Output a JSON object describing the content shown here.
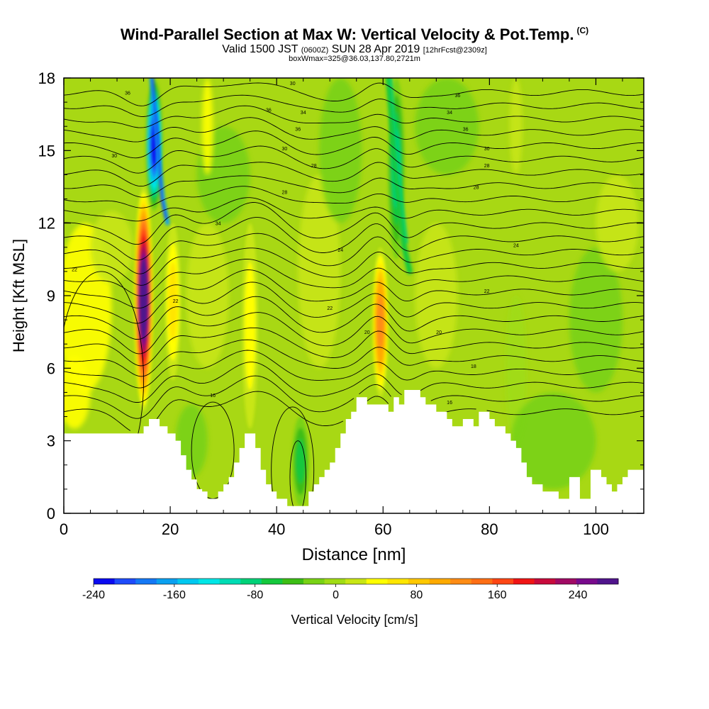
{
  "title": {
    "main": "Wind-Parallel Section at Max W: Vertical Velocity & Pot.Temp.",
    "main_sup": "(C)",
    "valid_a": "Valid 1500 JST",
    "valid_b": "(0600Z)",
    "valid_c": "SUN 28 Apr 2019",
    "valid_d": "[12hrFcst@2309z]",
    "box": "boxWmax=325@36.03,137.80,2721m"
  },
  "chart_data": {
    "type": "heatmap",
    "xlabel": "Distance [nm]",
    "ylabel": "Height [Kft MSL]",
    "xlim": [
      0,
      109
    ],
    "ylim": [
      0,
      18
    ],
    "xticks": [
      0,
      20,
      40,
      60,
      80,
      100
    ],
    "yticks": [
      0,
      3,
      6,
      9,
      12,
      15,
      18
    ],
    "colorbar": {
      "label": "Vertical Velocity [cm/s]",
      "range": [
        -240,
        280
      ],
      "tick_values": [
        -240,
        -160,
        -80,
        0,
        80,
        160,
        240
      ],
      "colors": [
        "#0a0af0",
        "#1e4bfa",
        "#1478f5",
        "#0aa0f0",
        "#00c8f0",
        "#00e6e6",
        "#00dcb4",
        "#00d278",
        "#14c83c",
        "#3cbe14",
        "#78d214",
        "#a0dc14",
        "#c8e614",
        "#ffff00",
        "#ffe600",
        "#ffc800",
        "#ffaa00",
        "#ff8c14",
        "#ff6e14",
        "#ff4614",
        "#f01414",
        "#c80a3c",
        "#a00a64",
        "#780a8c",
        "#50148c"
      ]
    },
    "velocity_features": [
      {
        "kind": "updraft",
        "x_center_nm": 15,
        "z_bottom_kft": 4.2,
        "z_top_kft": 13.5,
        "max_cm_s": 280
      },
      {
        "kind": "updraft",
        "x_center_nm": 20.5,
        "z_bottom_kft": 5.5,
        "z_top_kft": 12,
        "max_cm_s": 60
      },
      {
        "kind": "updraft",
        "x_center_nm": 35,
        "z_bottom_kft": 3.5,
        "z_top_kft": 12,
        "max_cm_s": 40
      },
      {
        "kind": "updraft",
        "x_center_nm": 59.5,
        "z_bottom_kft": 4.8,
        "z_top_kft": 11,
        "max_cm_s": 130
      },
      {
        "kind": "downdraft",
        "x_center_nm": 17,
        "z_bottom_kft": 12.5,
        "z_top_kft": 18,
        "min_cm_s": -220
      },
      {
        "kind": "downdraft",
        "x_center_nm": 62.5,
        "z_bottom_kft": 10.5,
        "z_top_kft": 18,
        "min_cm_s": -80
      },
      {
        "kind": "downdraft",
        "x_center_nm": 44.5,
        "z_bottom_kft": 0.3,
        "z_top_kft": 4,
        "min_cm_s": -60
      }
    ],
    "terrain": {
      "x": [
        0,
        14,
        15,
        16,
        17,
        18,
        19.5,
        21,
        22,
        23,
        24,
        25,
        26,
        27,
        28,
        29,
        30,
        31,
        32,
        33,
        34,
        35,
        36,
        37,
        38,
        39,
        40,
        41,
        42,
        43,
        44,
        45,
        46,
        47,
        48,
        49,
        50,
        51,
        52,
        53,
        54,
        55,
        56,
        57,
        58,
        59,
        60,
        61,
        62,
        63,
        64,
        65,
        66,
        67,
        68,
        69,
        70,
        71,
        72,
        73,
        74,
        75,
        76,
        77,
        78,
        79,
        80,
        81,
        82,
        83,
        84,
        85,
        86,
        87,
        88,
        89,
        90,
        91,
        92,
        93,
        94,
        95,
        96,
        97,
        98,
        99,
        100,
        101,
        102,
        103,
        104,
        105,
        106,
        107,
        108,
        109
      ],
      "z": [
        3.3,
        3.3,
        3.6,
        3.9,
        3.9,
        3.6,
        3.3,
        3.0,
        2.4,
        1.8,
        1.4,
        1.0,
        0.9,
        0.6,
        0.6,
        0.9,
        1.2,
        1.5,
        2.1,
        2.7,
        3.3,
        3.3,
        2.7,
        1.8,
        1.2,
        0.9,
        0.6,
        0.6,
        0.3,
        0.3,
        0.3,
        0.3,
        0.9,
        1.2,
        1.5,
        1.8,
        2.1,
        2.7,
        3.3,
        3.9,
        4.2,
        4.8,
        4.8,
        4.5,
        4.5,
        4.5,
        4.5,
        4.2,
        4.8,
        4.5,
        5.1,
        5.1,
        5.1,
        4.8,
        4.5,
        4.5,
        4.2,
        4.2,
        3.9,
        3.6,
        3.6,
        3.9,
        3.9,
        3.6,
        4.2,
        4.2,
        3.9,
        3.6,
        3.6,
        3.3,
        3.0,
        2.7,
        2.1,
        1.5,
        1.2,
        1.2,
        0.9,
        0.9,
        0.9,
        0.6,
        0.6,
        1.5,
        1.5,
        0.6,
        0.6,
        1.8,
        1.8,
        1.5,
        1.2,
        0.9,
        1.2,
        1.5,
        1.8,
        1.8,
        1.8,
        1.5
      ]
    },
    "isentrope_labels": [
      {
        "text": "36",
        "x": 12,
        "y": 17.4
      },
      {
        "text": "30",
        "x": 43,
        "y": 17.8
      },
      {
        "text": "36",
        "x": 74,
        "y": 17.3
      },
      {
        "text": "36",
        "x": 38.5,
        "y": 16.7
      },
      {
        "text": "34",
        "x": 45,
        "y": 16.6
      },
      {
        "text": "34",
        "x": 72.5,
        "y": 16.6
      },
      {
        "text": "36",
        "x": 44,
        "y": 15.9
      },
      {
        "text": "36",
        "x": 75.5,
        "y": 15.9
      },
      {
        "text": "30",
        "x": 41.5,
        "y": 15.1
      },
      {
        "text": "30",
        "x": 79.5,
        "y": 15.1
      },
      {
        "text": "30",
        "x": 9.5,
        "y": 14.8
      },
      {
        "text": "28",
        "x": 47,
        "y": 14.4
      },
      {
        "text": "28",
        "x": 79.5,
        "y": 14.4
      },
      {
        "text": "28",
        "x": 41.5,
        "y": 13.3
      },
      {
        "text": "28",
        "x": 77.5,
        "y": 13.5
      },
      {
        "text": "34",
        "x": 29,
        "y": 12
      },
      {
        "text": "24",
        "x": 52,
        "y": 10.9
      },
      {
        "text": "24",
        "x": 85,
        "y": 11.1
      },
      {
        "text": "22",
        "x": 2,
        "y": 10.1
      },
      {
        "text": "22",
        "x": 79.5,
        "y": 9.2
      },
      {
        "text": "22",
        "x": 21,
        "y": 8.8
      },
      {
        "text": "22",
        "x": 50,
        "y": 8.5
      },
      {
        "text": "20",
        "x": 57,
        "y": 7.5
      },
      {
        "text": "20",
        "x": 70.5,
        "y": 7.5
      },
      {
        "text": "18",
        "x": 77,
        "y": 6.1
      },
      {
        "text": "16",
        "x": 28,
        "y": 4.9
      },
      {
        "text": "16",
        "x": 72.5,
        "y": 4.6
      }
    ]
  }
}
